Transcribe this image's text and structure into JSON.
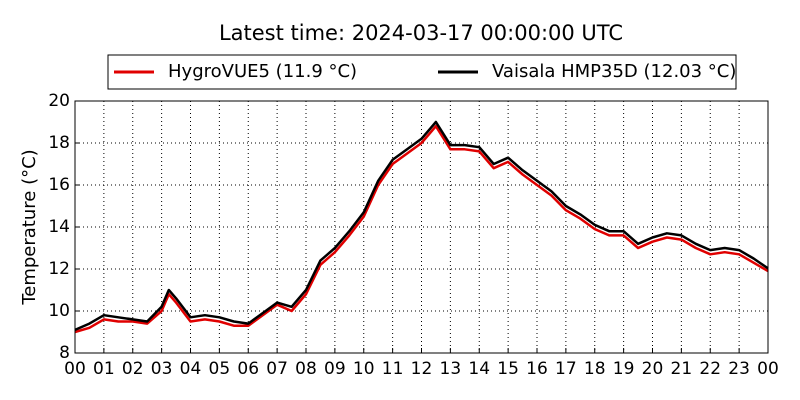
{
  "chart_data": {
    "type": "line",
    "title": "Latest time: 2024-03-17 00:00:00 UTC",
    "y_label": "Temperature (°C)",
    "x": [
      0,
      0.5,
      1,
      1.5,
      2,
      2.5,
      3,
      3.25,
      3.5,
      4,
      4.5,
      5,
      5.5,
      6,
      6.5,
      7,
      7.5,
      8,
      8.5,
      9,
      9.5,
      10,
      10.5,
      11,
      11.5,
      12,
      12.5,
      13,
      13.5,
      14,
      14.5,
      15,
      15.5,
      16,
      16.5,
      17,
      17.5,
      18,
      18.5,
      19,
      19.5,
      20,
      20.5,
      21,
      21.5,
      22,
      22.5,
      23,
      23.5,
      24
    ],
    "series": [
      {
        "name": "HygroVUE5 (11.9 °C)",
        "color": "#e00000",
        "values": [
          9.0,
          9.2,
          9.6,
          9.5,
          9.5,
          9.4,
          10.0,
          10.8,
          10.4,
          9.5,
          9.6,
          9.5,
          9.3,
          9.3,
          9.8,
          10.3,
          10.0,
          10.8,
          12.2,
          12.8,
          13.6,
          14.5,
          16.0,
          17.0,
          17.5,
          18.0,
          18.8,
          17.7,
          17.7,
          17.6,
          16.8,
          17.1,
          16.5,
          16.0,
          15.5,
          14.8,
          14.4,
          13.9,
          13.6,
          13.6,
          13.0,
          13.3,
          13.5,
          13.4,
          13.0,
          12.7,
          12.8,
          12.7,
          12.3,
          11.9
        ]
      },
      {
        "name": "Vaisala HMP35D (12.03 °C)",
        "color": "#000000",
        "values": [
          9.1,
          9.4,
          9.8,
          9.7,
          9.6,
          9.5,
          10.2,
          11.0,
          10.6,
          9.7,
          9.8,
          9.7,
          9.5,
          9.4,
          9.9,
          10.4,
          10.2,
          11.0,
          12.4,
          13.0,
          13.8,
          14.7,
          16.2,
          17.2,
          17.7,
          18.2,
          19.0,
          17.9,
          17.9,
          17.8,
          17.0,
          17.3,
          16.7,
          16.2,
          15.7,
          15.0,
          14.6,
          14.1,
          13.8,
          13.8,
          13.2,
          13.5,
          13.7,
          13.6,
          13.2,
          12.9,
          13.0,
          12.9,
          12.5,
          12.03
        ]
      }
    ],
    "xlim": [
      0,
      24
    ],
    "ylim": [
      8,
      20
    ],
    "yticks": [
      8,
      10,
      12,
      14,
      16,
      18,
      20
    ],
    "xticks": [
      {
        "value": 0,
        "label": "00"
      },
      {
        "value": 1,
        "label": "01"
      },
      {
        "value": 2,
        "label": "02"
      },
      {
        "value": 3,
        "label": "03"
      },
      {
        "value": 4,
        "label": "04"
      },
      {
        "value": 5,
        "label": "05"
      },
      {
        "value": 6,
        "label": "06"
      },
      {
        "value": 7,
        "label": "07"
      },
      {
        "value": 8,
        "label": "08"
      },
      {
        "value": 9,
        "label": "09"
      },
      {
        "value": 10,
        "label": "10"
      },
      {
        "value": 11,
        "label": "11"
      },
      {
        "value": 12,
        "label": "12"
      },
      {
        "value": 13,
        "label": "13"
      },
      {
        "value": 14,
        "label": "14"
      },
      {
        "value": 15,
        "label": "15"
      },
      {
        "value": 16,
        "label": "16"
      },
      {
        "value": 17,
        "label": "17"
      },
      {
        "value": 18,
        "label": "18"
      },
      {
        "value": 19,
        "label": "19"
      },
      {
        "value": 20,
        "label": "20"
      },
      {
        "value": 21,
        "label": "21"
      },
      {
        "value": 22,
        "label": "22"
      },
      {
        "value": 23,
        "label": "23"
      },
      {
        "value": 24,
        "label": "00"
      }
    ],
    "grid": true,
    "legend": "top"
  }
}
